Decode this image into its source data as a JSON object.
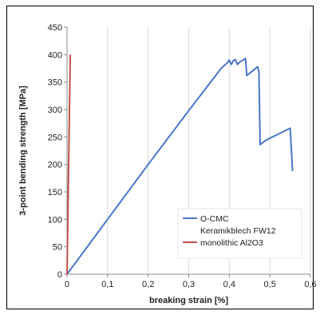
{
  "chart_data": {
    "type": "line",
    "title": "",
    "xlabel": "breaking strain [%]",
    "ylabel": "3-point bending strength [MPa]",
    "xlim": [
      0,
      0.6
    ],
    "ylim": [
      0,
      450
    ],
    "x_ticks": [
      0,
      0.1,
      0.2,
      0.3,
      0.4,
      0.5,
      0.6
    ],
    "x_tick_labels": [
      "0",
      "0,1",
      "0,2",
      "0,3",
      "0,4",
      "0,5",
      "0,6"
    ],
    "y_ticks": [
      0,
      50,
      100,
      150,
      200,
      250,
      300,
      350,
      400,
      450
    ],
    "y_tick_labels": [
      "0",
      "50",
      "100",
      "150",
      "200",
      "250",
      "300",
      "350",
      "400",
      "450"
    ],
    "grid": "vertical",
    "legend_position": "bottom-right",
    "series": [
      {
        "name_lines": [
          "O-CMC",
          "Keramikblech FW12"
        ],
        "color": "#4a77c9",
        "points": [
          [
            0.0,
            0
          ],
          [
            0.1,
            100
          ],
          [
            0.2,
            200
          ],
          [
            0.3,
            298
          ],
          [
            0.38,
            375
          ],
          [
            0.395,
            385
          ],
          [
            0.4,
            390
          ],
          [
            0.405,
            382
          ],
          [
            0.41,
            389
          ],
          [
            0.415,
            391
          ],
          [
            0.42,
            382
          ],
          [
            0.425,
            386
          ],
          [
            0.44,
            393
          ],
          [
            0.443,
            362
          ],
          [
            0.45,
            366
          ],
          [
            0.46,
            372
          ],
          [
            0.47,
            378
          ],
          [
            0.473,
            368
          ],
          [
            0.476,
            236
          ],
          [
            0.49,
            244
          ],
          [
            0.52,
            255
          ],
          [
            0.55,
            266
          ],
          [
            0.556,
            188
          ]
        ]
      },
      {
        "name": "monolithic Al2O3",
        "color": "#c0504d",
        "points": [
          [
            0.0,
            0
          ],
          [
            0.003,
            150
          ],
          [
            0.006,
            300
          ],
          [
            0.008,
            400
          ]
        ]
      }
    ]
  }
}
